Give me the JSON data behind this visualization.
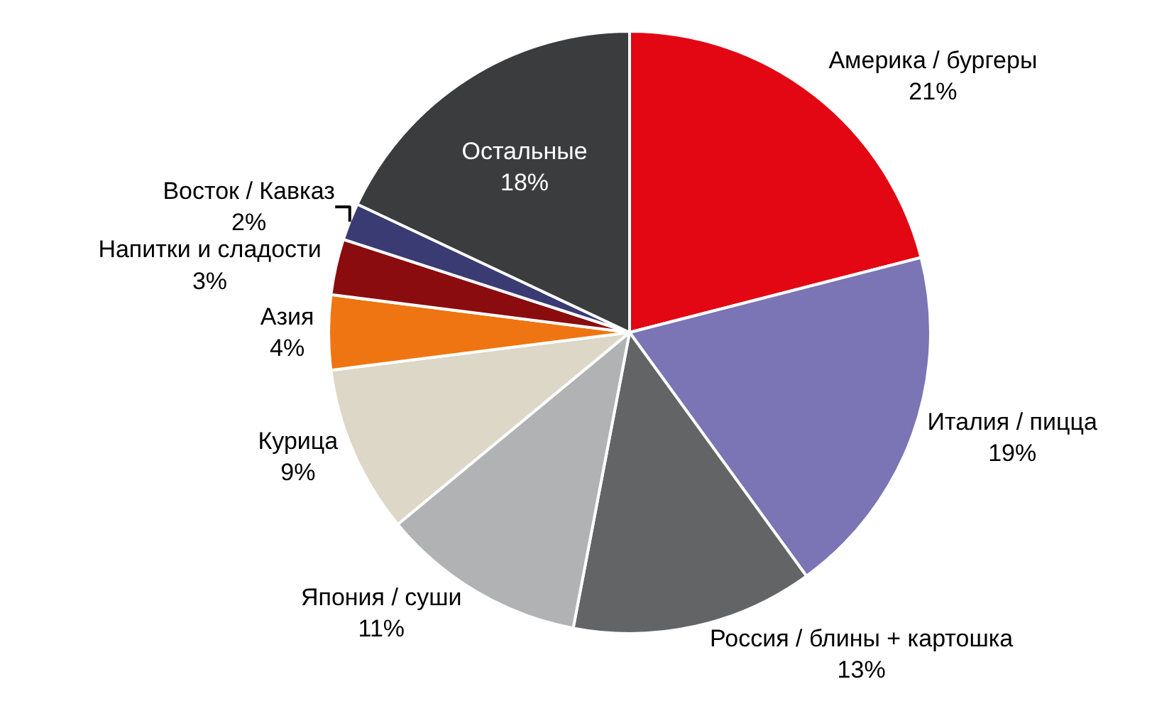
{
  "chart_data": {
    "type": "pie",
    "categories": [
      "Америка / бургеры",
      "Италия / пицца",
      "Россия / блины + картошка",
      "Япония / суши",
      "Курица",
      "Азия",
      "Напитки и сладости",
      "Восток / Кавказ",
      "Остальные"
    ],
    "values": [
      21,
      19,
      13,
      11,
      9,
      4,
      3,
      2,
      18
    ],
    "value_labels": [
      "21%",
      "19%",
      "13%",
      "11%",
      "9%",
      "4%",
      "3%",
      "2%",
      "18%"
    ],
    "colors": [
      "#e30613",
      "#7b74b5",
      "#636466",
      "#b1b2b4",
      "#ddd7c8",
      "#ef7512",
      "#8b0c0e",
      "#3b3b73",
      "#3b3c3e"
    ],
    "legend": false
  }
}
